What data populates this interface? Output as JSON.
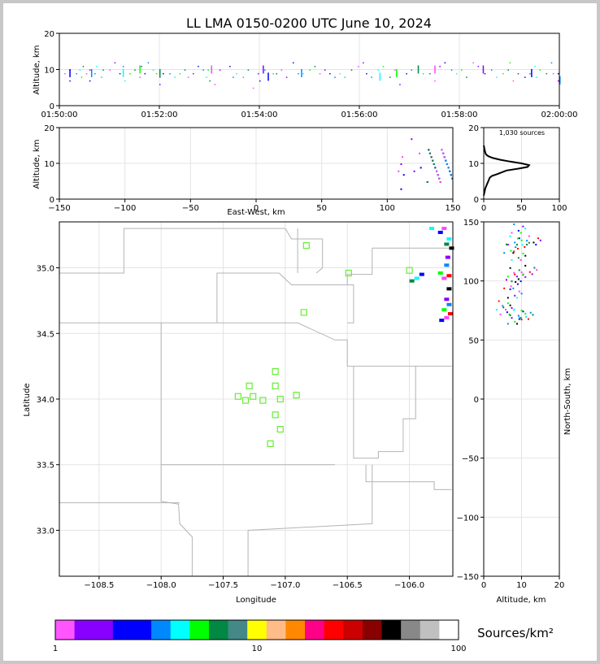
{
  "chart_data": {
    "type": "scatter",
    "title": "LL LMA 0150-0200 UTC June 10, 2024",
    "source_count_label": "1,030 sources",
    "colorbar_label": "Sources/km²",
    "colorbar_ticks": [
      "1",
      "10",
      "100"
    ],
    "colorbar_colors": [
      "#ff55ff",
      "#8800ff",
      "#8800ff",
      "#0000ff",
      "#0000ff",
      "#0088ff",
      "#00ffff",
      "#00ff00",
      "#008844",
      "#448888",
      "#ffff00",
      "#ffbb88",
      "#ff8800",
      "#ff0088",
      "#ff0000",
      "#cc0000",
      "#880000",
      "#000000",
      "#888888",
      "#c0c0c0",
      "#ffffff"
    ],
    "time_altitude": {
      "ylabel": "Altitude, km",
      "ylim": [
        0,
        20
      ],
      "yticks": [
        "0",
        "10",
        "20"
      ],
      "xticks": [
        "01:50:00",
        "01:52:00",
        "01:54:00",
        "01:56:00",
        "01:58:00",
        "02:00:00"
      ],
      "points": [
        [
          0.3,
          9
        ],
        [
          0.6,
          10
        ],
        [
          0.6,
          7
        ],
        [
          1.0,
          9
        ],
        [
          1.2,
          10
        ],
        [
          1.3,
          8
        ],
        [
          1.4,
          11
        ],
        [
          1.6,
          9
        ],
        [
          1.8,
          10
        ],
        [
          1.8,
          7
        ],
        [
          2.1,
          9
        ],
        [
          2.2,
          11
        ],
        [
          2.5,
          8
        ],
        [
          2.6,
          10
        ],
        [
          3.0,
          10
        ],
        [
          3.3,
          12
        ],
        [
          3.6,
          9
        ],
        [
          3.8,
          11
        ],
        [
          3.9,
          7
        ],
        [
          4.2,
          9
        ],
        [
          4.5,
          10
        ],
        [
          4.8,
          8
        ],
        [
          4.9,
          11
        ],
        [
          5.1,
          9
        ],
        [
          5.3,
          12
        ],
        [
          5.6,
          10
        ],
        [
          5.8,
          9
        ],
        [
          6.0,
          10
        ],
        [
          6.0,
          8
        ],
        [
          6.0,
          6
        ],
        [
          6.2,
          9
        ],
        [
          6.6,
          9
        ],
        [
          6.9,
          8
        ],
        [
          7.2,
          9
        ],
        [
          7.5,
          10
        ],
        [
          7.7,
          8
        ],
        [
          8.0,
          9
        ],
        [
          8.3,
          11
        ],
        [
          8.6,
          10
        ],
        [
          8.8,
          8
        ],
        [
          8.9,
          10
        ],
        [
          9.0,
          7
        ],
        [
          9.3,
          6
        ],
        [
          9.6,
          10
        ],
        [
          10.2,
          11
        ],
        [
          10.4,
          8
        ],
        [
          10.6,
          9
        ],
        [
          11.0,
          8
        ],
        [
          11.3,
          10
        ],
        [
          11.6,
          5
        ],
        [
          11.9,
          9
        ],
        [
          12.0,
          7
        ],
        [
          12.3,
          10
        ],
        [
          12.5,
          9
        ],
        [
          12.8,
          9
        ],
        [
          13.0,
          9
        ],
        [
          13.3,
          10
        ],
        [
          13.6,
          8
        ],
        [
          14.0,
          12
        ],
        [
          14.3,
          9
        ],
        [
          14.6,
          9
        ],
        [
          15.0,
          10
        ],
        [
          15.3,
          11
        ],
        [
          15.6,
          9
        ],
        [
          15.9,
          10
        ],
        [
          16.2,
          9
        ],
        [
          16.5,
          8
        ],
        [
          16.8,
          9
        ],
        [
          17.1,
          8
        ],
        [
          17.5,
          10
        ],
        [
          17.9,
          11
        ],
        [
          18.2,
          12
        ],
        [
          18.4,
          9
        ],
        [
          18.7,
          8
        ],
        [
          19.1,
          10
        ],
        [
          19.4,
          11
        ],
        [
          19.8,
          8
        ],
        [
          20.1,
          10
        ],
        [
          20.4,
          6
        ],
        [
          20.8,
          9
        ],
        [
          21.1,
          10
        ],
        [
          21.5,
          11
        ],
        [
          21.8,
          9
        ],
        [
          22.2,
          9
        ],
        [
          22.5,
          7
        ],
        [
          22.8,
          11
        ],
        [
          23.1,
          12
        ],
        [
          23.5,
          10
        ],
        [
          23.8,
          9
        ],
        [
          24.1,
          10
        ],
        [
          24.4,
          8
        ],
        [
          24.8,
          12
        ],
        [
          25.1,
          11
        ],
        [
          25.5,
          9
        ],
        [
          25.9,
          10
        ],
        [
          26.2,
          8
        ],
        [
          26.6,
          9
        ],
        [
          26.9,
          10
        ],
        [
          27.2,
          7
        ],
        [
          27.5,
          9
        ],
        [
          27.9,
          8
        ],
        [
          28.2,
          9
        ],
        [
          28.5,
          11
        ],
        [
          28.8,
          10
        ],
        [
          29.2,
          9
        ],
        [
          29.6,
          9
        ],
        [
          29.9,
          7
        ],
        [
          29.9,
          9
        ],
        [
          29.5,
          12
        ],
        [
          28.6,
          8
        ],
        [
          27.0,
          12
        ]
      ],
      "bursts": [
        [
          0.6,
          9
        ],
        [
          1.9,
          9
        ],
        [
          3.8,
          9
        ],
        [
          4.8,
          10
        ],
        [
          6.0,
          9
        ],
        [
          9.1,
          10
        ],
        [
          12.2,
          10
        ],
        [
          12.5,
          8
        ],
        [
          14.5,
          9
        ],
        [
          19.2,
          8
        ],
        [
          20.2,
          9
        ],
        [
          21.5,
          10
        ],
        [
          22.5,
          10
        ],
        [
          25.4,
          10
        ],
        [
          28.3,
          9
        ],
        [
          30.0,
          7
        ]
      ]
    },
    "ew_altitude": {
      "ylabel": "Altitude, km",
      "xlabel": "East-West, km",
      "xlim": [
        -150,
        150
      ],
      "ylim": [
        0,
        20
      ],
      "xticks": [
        "−150",
        "−100",
        "−50",
        "0",
        "50",
        "100",
        "150"
      ],
      "yticks": [
        "0",
        "10",
        "20"
      ]
    },
    "histogram": {
      "xlim": [
        0,
        100
      ],
      "ylim": [
        0,
        20
      ],
      "xticks": [
        "0",
        "50",
        "100"
      ],
      "yticks": [
        "0",
        "10",
        "20"
      ],
      "profile": [
        [
          0,
          1
        ],
        [
          2,
          3
        ],
        [
          4,
          4
        ],
        [
          6,
          5
        ],
        [
          8,
          6
        ],
        [
          11,
          6.5
        ],
        [
          18,
          7
        ],
        [
          30,
          8
        ],
        [
          45,
          8.5
        ],
        [
          58,
          9
        ],
        [
          60,
          9.5
        ],
        [
          50,
          10
        ],
        [
          35,
          10.5
        ],
        [
          22,
          11
        ],
        [
          12,
          11.5
        ],
        [
          6,
          12
        ],
        [
          3,
          12.5
        ],
        [
          2,
          13
        ],
        [
          1,
          14
        ],
        [
          0,
          15
        ]
      ]
    },
    "plan_view": {
      "xlabel": "Longitude",
      "ylabel": "Latitude",
      "xlim": [
        -108.82,
        -105.65
      ],
      "ylim": [
        32.65,
        35.35
      ],
      "xticks": [
        "−108.5",
        "−108.0",
        "−107.5",
        "−107.0",
        "−106.5",
        "−106.0"
      ],
      "yticks": [
        "33.0",
        "33.5",
        "34.0",
        "34.5",
        "35.0"
      ],
      "stations": [
        [
          -106.83,
          35.17
        ],
        [
          -106.49,
          34.96
        ],
        [
          -106.0,
          34.98
        ],
        [
          -106.85,
          34.66
        ],
        [
          -107.08,
          34.21
        ],
        [
          -107.29,
          34.1
        ],
        [
          -107.08,
          34.1
        ],
        [
          -107.38,
          34.02
        ],
        [
          -107.26,
          34.02
        ],
        [
          -107.32,
          33.99
        ],
        [
          -107.18,
          33.99
        ],
        [
          -107.04,
          34.0
        ],
        [
          -106.91,
          34.03
        ],
        [
          -107.08,
          33.88
        ],
        [
          -107.04,
          33.77
        ],
        [
          -107.12,
          33.66
        ]
      ],
      "sources": [
        [
          -105.72,
          35.3
        ],
        [
          -105.75,
          35.27
        ],
        [
          -105.68,
          35.22
        ],
        [
          -105.7,
          35.18
        ],
        [
          -105.66,
          35.15
        ],
        [
          -105.69,
          35.08
        ],
        [
          -105.7,
          35.02
        ],
        [
          -105.75,
          34.96
        ],
        [
          -105.68,
          34.94
        ],
        [
          -105.72,
          34.92
        ],
        [
          -105.9,
          34.95
        ],
        [
          -105.94,
          34.92
        ],
        [
          -105.98,
          34.9
        ],
        [
          -105.68,
          34.84
        ],
        [
          -105.7,
          34.76
        ],
        [
          -105.68,
          34.72
        ],
        [
          -105.72,
          34.68
        ],
        [
          -105.67,
          34.65
        ],
        [
          -105.7,
          34.62
        ],
        [
          -105.74,
          34.6
        ],
        [
          -105.82,
          35.3
        ]
      ]
    },
    "ns_altitude": {
      "xlabel": "Altitude, km",
      "ylabel": "North-South, km",
      "xlim": [
        0,
        20
      ],
      "ylim": [
        -150,
        150
      ],
      "xticks": [
        "0",
        "10",
        "20"
      ],
      "yticks": [
        "−150",
        "−100",
        "−50",
        "0",
        "50",
        "100",
        "150"
      ],
      "clusters": [
        [
          9,
          145
        ],
        [
          8,
          135
        ],
        [
          10,
          133
        ],
        [
          7,
          128
        ],
        [
          9,
          122
        ],
        [
          8,
          108
        ],
        [
          9,
          104
        ],
        [
          7,
          98
        ],
        [
          8,
          90
        ],
        [
          6,
          76
        ],
        [
          9,
          73
        ],
        [
          11,
          72
        ],
        [
          8,
          68
        ],
        [
          5,
          80
        ],
        [
          12,
          110
        ],
        [
          13,
          135
        ]
      ]
    }
  }
}
